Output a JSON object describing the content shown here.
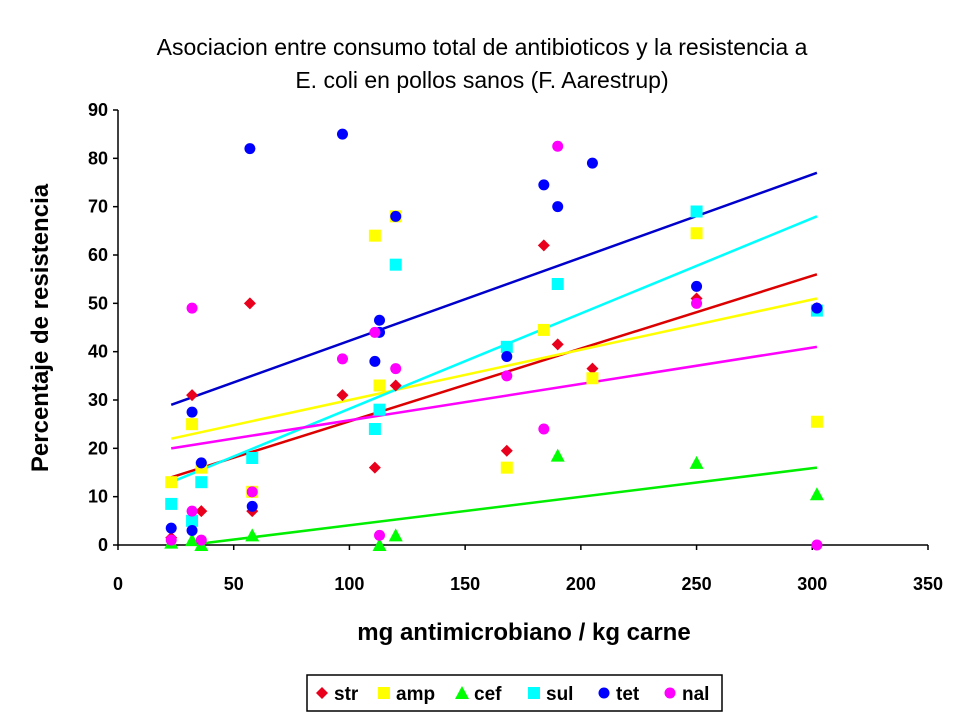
{
  "chart_data": {
    "type": "scatter",
    "title_lines": [
      "Asociacion entre consumo total de antibioticos y la resistencia a",
      "E. coli en pollos sanos (F. Aarestrup)"
    ],
    "xlabel": "mg antimicrobiano / kg carne",
    "ylabel": "Percentaje de resistencia",
    "xlim": [
      0,
      350
    ],
    "ylim": [
      0,
      90
    ],
    "xticks": [
      "0",
      "50",
      "100",
      "150",
      "200",
      "250",
      "300",
      "350"
    ],
    "yticks": [
      "0",
      "10",
      "20",
      "30",
      "40",
      "50",
      "60",
      "70",
      "80",
      "90"
    ],
    "grid": false,
    "legend_position": "bottom",
    "series": [
      {
        "name": "str",
        "color": "#e8001c",
        "marker": "diamond",
        "points": [
          [
            23,
            1.5
          ],
          [
            32,
            31
          ],
          [
            36,
            7
          ],
          [
            57,
            50
          ],
          [
            58,
            7
          ],
          [
            97,
            31
          ],
          [
            111,
            16
          ],
          [
            120,
            33
          ],
          [
            168,
            19.5
          ],
          [
            184,
            62
          ],
          [
            190,
            41.5
          ],
          [
            205,
            36.5
          ],
          [
            250,
            51
          ],
          [
            302,
            49
          ]
        ],
        "trend": [
          [
            23,
            14
          ],
          [
            302,
            56
          ]
        ]
      },
      {
        "name": "amp",
        "color": "#ffff00",
        "marker": "square",
        "points": [
          [
            23,
            13
          ],
          [
            32,
            25
          ],
          [
            36,
            16
          ],
          [
            58,
            11
          ],
          [
            111,
            64
          ],
          [
            113,
            33
          ],
          [
            120,
            68
          ],
          [
            168,
            16
          ],
          [
            184,
            44.5
          ],
          [
            205,
            34.5
          ],
          [
            250,
            64.5
          ],
          [
            302,
            25.5
          ]
        ],
        "trend": [
          [
            23,
            22
          ],
          [
            302,
            51
          ]
        ]
      },
      {
        "name": "cef",
        "color": "#00ff00",
        "marker": "triangle",
        "points": [
          [
            23,
            0.5
          ],
          [
            32,
            1
          ],
          [
            36,
            0
          ],
          [
            58,
            2
          ],
          [
            113,
            0
          ],
          [
            120,
            2
          ],
          [
            190,
            18.5
          ],
          [
            250,
            17
          ],
          [
            302,
            10.5
          ]
        ],
        "trend": [
          [
            36,
            0.3
          ],
          [
            302,
            16
          ]
        ]
      },
      {
        "name": "sul",
        "color": "#00ffff",
        "marker": "square",
        "points": [
          [
            23,
            8.5
          ],
          [
            32,
            5
          ],
          [
            36,
            13
          ],
          [
            58,
            18
          ],
          [
            111,
            24
          ],
          [
            113,
            28
          ],
          [
            120,
            58
          ],
          [
            168,
            41
          ],
          [
            190,
            54
          ],
          [
            250,
            69
          ],
          [
            302,
            48.5
          ]
        ],
        "trend": [
          [
            23,
            13
          ],
          [
            302,
            68
          ]
        ]
      },
      {
        "name": "tet",
        "color": "#0000ff",
        "marker": "circle",
        "points": [
          [
            23,
            3.5
          ],
          [
            32,
            3
          ],
          [
            32,
            27.5
          ],
          [
            36,
            17
          ],
          [
            57,
            82
          ],
          [
            58,
            8
          ],
          [
            97,
            85
          ],
          [
            111,
            38
          ],
          [
            113,
            46.5
          ],
          [
            113,
            44
          ],
          [
            120,
            68
          ],
          [
            168,
            39
          ],
          [
            184,
            74.5
          ],
          [
            190,
            70
          ],
          [
            205,
            79
          ],
          [
            250,
            53.5
          ],
          [
            302,
            49
          ]
        ],
        "trend": [
          [
            23,
            29
          ],
          [
            302,
            77
          ]
        ]
      },
      {
        "name": "nal",
        "color": "#ff00ff",
        "marker": "circle",
        "points": [
          [
            23,
            1
          ],
          [
            32,
            7
          ],
          [
            32,
            49
          ],
          [
            36,
            1
          ],
          [
            58,
            11
          ],
          [
            97,
            38.5
          ],
          [
            111,
            44
          ],
          [
            113,
            2
          ],
          [
            120,
            36.5
          ],
          [
            168,
            35
          ],
          [
            184,
            24
          ],
          [
            190,
            82.5
          ],
          [
            250,
            50
          ],
          [
            302,
            0
          ]
        ],
        "trend": [
          [
            23,
            20
          ],
          [
            302,
            41
          ]
        ]
      }
    ],
    "trend_colors": {
      "str": "#dd0000",
      "amp": "#ffff00",
      "cef": "#00ee00",
      "sul": "#00ffff",
      "tet": "#0000cc",
      "nal": "#ff00ff"
    }
  }
}
